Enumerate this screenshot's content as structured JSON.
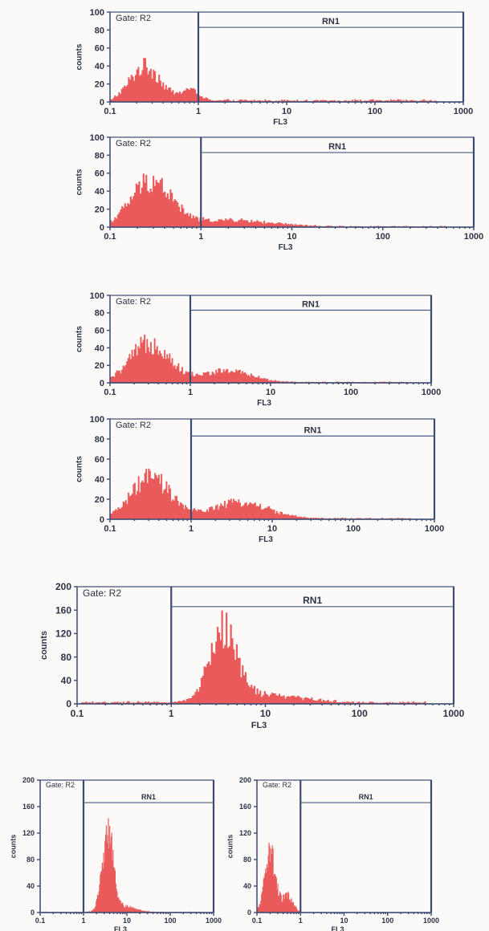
{
  "chart_data": [
    {
      "type": "histogram",
      "gate_label": "Gate: R2",
      "marker_label": "RN1",
      "marker_range": [
        1,
        1000
      ],
      "xlabel": "FL3",
      "ylabel": "counts",
      "x_scale": "log",
      "xlim": [
        0.1,
        1000
      ],
      "ylim": [
        0,
        100
      ],
      "x_ticks": [
        "0.1",
        "1",
        "10",
        "100",
        "1000"
      ],
      "y_ticks": [
        "0",
        "20",
        "40",
        "60",
        "80",
        "100"
      ],
      "distribution": [
        {
          "log10_center": -0.6,
          "width": 0.17,
          "peak": 38
        },
        {
          "log10_center": -0.1,
          "width": 0.1,
          "peak": 12
        }
      ],
      "baseline": 2
    },
    {
      "type": "histogram",
      "gate_label": "Gate: R2",
      "marker_label": "RN1",
      "marker_range": [
        1,
        1000
      ],
      "xlabel": "FL3",
      "ylabel": "counts",
      "x_scale": "log",
      "xlim": [
        0.1,
        1000
      ],
      "ylim": [
        0,
        100
      ],
      "x_ticks": [
        "0.1",
        "1",
        "10",
        "100",
        "1000"
      ],
      "y_ticks": [
        "0",
        "20",
        "40",
        "60",
        "80",
        "100"
      ],
      "distribution": [
        {
          "log10_center": -0.55,
          "width": 0.22,
          "peak": 50
        },
        {
          "log10_center": 0.3,
          "width": 0.45,
          "peak": 7
        }
      ],
      "baseline": 1
    },
    {
      "type": "histogram",
      "gate_label": "Gate: R2",
      "marker_label": "RN1",
      "marker_range": [
        1,
        1000
      ],
      "xlabel": "FL3",
      "ylabel": "counts",
      "x_scale": "log",
      "xlim": [
        0.1,
        1000
      ],
      "ylim": [
        0,
        100
      ],
      "x_ticks": [
        "0.1",
        "1",
        "10",
        "100",
        "1000"
      ],
      "y_ticks": [
        "0",
        "20",
        "40",
        "60",
        "80",
        "100"
      ],
      "distribution": [
        {
          "log10_center": -0.5,
          "width": 0.24,
          "peak": 45
        },
        {
          "log10_center": 0.45,
          "width": 0.3,
          "peak": 13
        }
      ],
      "baseline": 1
    },
    {
      "type": "histogram",
      "gate_label": "Gate: R2",
      "marker_label": "RN1",
      "marker_range": [
        1,
        1000
      ],
      "xlabel": "FL3",
      "ylabel": "counts",
      "x_scale": "log",
      "xlim": [
        0.1,
        1000
      ],
      "ylim": [
        0,
        100
      ],
      "x_ticks": [
        "0.1",
        "1",
        "10",
        "100",
        "1000"
      ],
      "y_ticks": [
        "0",
        "20",
        "40",
        "60",
        "80",
        "100"
      ],
      "distribution": [
        {
          "log10_center": -0.5,
          "width": 0.24,
          "peak": 40
        },
        {
          "log10_center": 0.6,
          "width": 0.35,
          "peak": 16
        }
      ],
      "baseline": 1
    },
    {
      "type": "histogram",
      "gate_label": "Gate: R2",
      "marker_label": "RN1",
      "marker_range": [
        1,
        1000
      ],
      "xlabel": "FL3",
      "ylabel": "counts",
      "x_scale": "log",
      "xlim": [
        0.1,
        1000
      ],
      "ylim": [
        0,
        200
      ],
      "x_ticks": [
        "0.1",
        "1",
        "10",
        "100",
        "1000"
      ],
      "y_ticks": [
        "0",
        "40",
        "80",
        "120",
        "160",
        "200"
      ],
      "distribution": [
        {
          "log10_center": 0.55,
          "width": 0.14,
          "peak": 118
        },
        {
          "log10_center": 0.95,
          "width": 0.4,
          "peak": 14
        }
      ],
      "baseline": 3
    },
    {
      "type": "histogram",
      "gate_label": "Gate: R2",
      "marker_label": "RN1",
      "marker_range": [
        1,
        1000
      ],
      "xlabel": "FL3",
      "ylabel": "counts",
      "x_scale": "log",
      "xlim": [
        0.1,
        1000
      ],
      "ylim": [
        0,
        200
      ],
      "x_ticks": [
        "0.1",
        "1",
        "10",
        "100",
        "1000"
      ],
      "y_ticks": [
        "0",
        "40",
        "80",
        "120",
        "160",
        "200"
      ],
      "distribution": [
        {
          "log10_center": 0.55,
          "width": 0.12,
          "peak": 120
        },
        {
          "log10_center": 0.85,
          "width": 0.3,
          "peak": 10
        }
      ],
      "baseline": 1
    },
    {
      "type": "histogram",
      "gate_label": "Gate: R2",
      "marker_label": "RN1",
      "marker_range": [
        1,
        1000
      ],
      "xlabel": "FL3",
      "ylabel": "counts",
      "x_scale": "log",
      "xlim": [
        0.1,
        1000
      ],
      "ylim": [
        0,
        200
      ],
      "x_ticks": [
        "0.1",
        "1",
        "10",
        "100",
        "1000"
      ],
      "y_ticks": [
        "0",
        "40",
        "80",
        "120",
        "160",
        "200"
      ],
      "distribution": [
        {
          "log10_center": -0.7,
          "width": 0.12,
          "peak": 95
        },
        {
          "log10_center": -0.3,
          "width": 0.12,
          "peak": 25
        }
      ],
      "baseline": 0
    }
  ]
}
